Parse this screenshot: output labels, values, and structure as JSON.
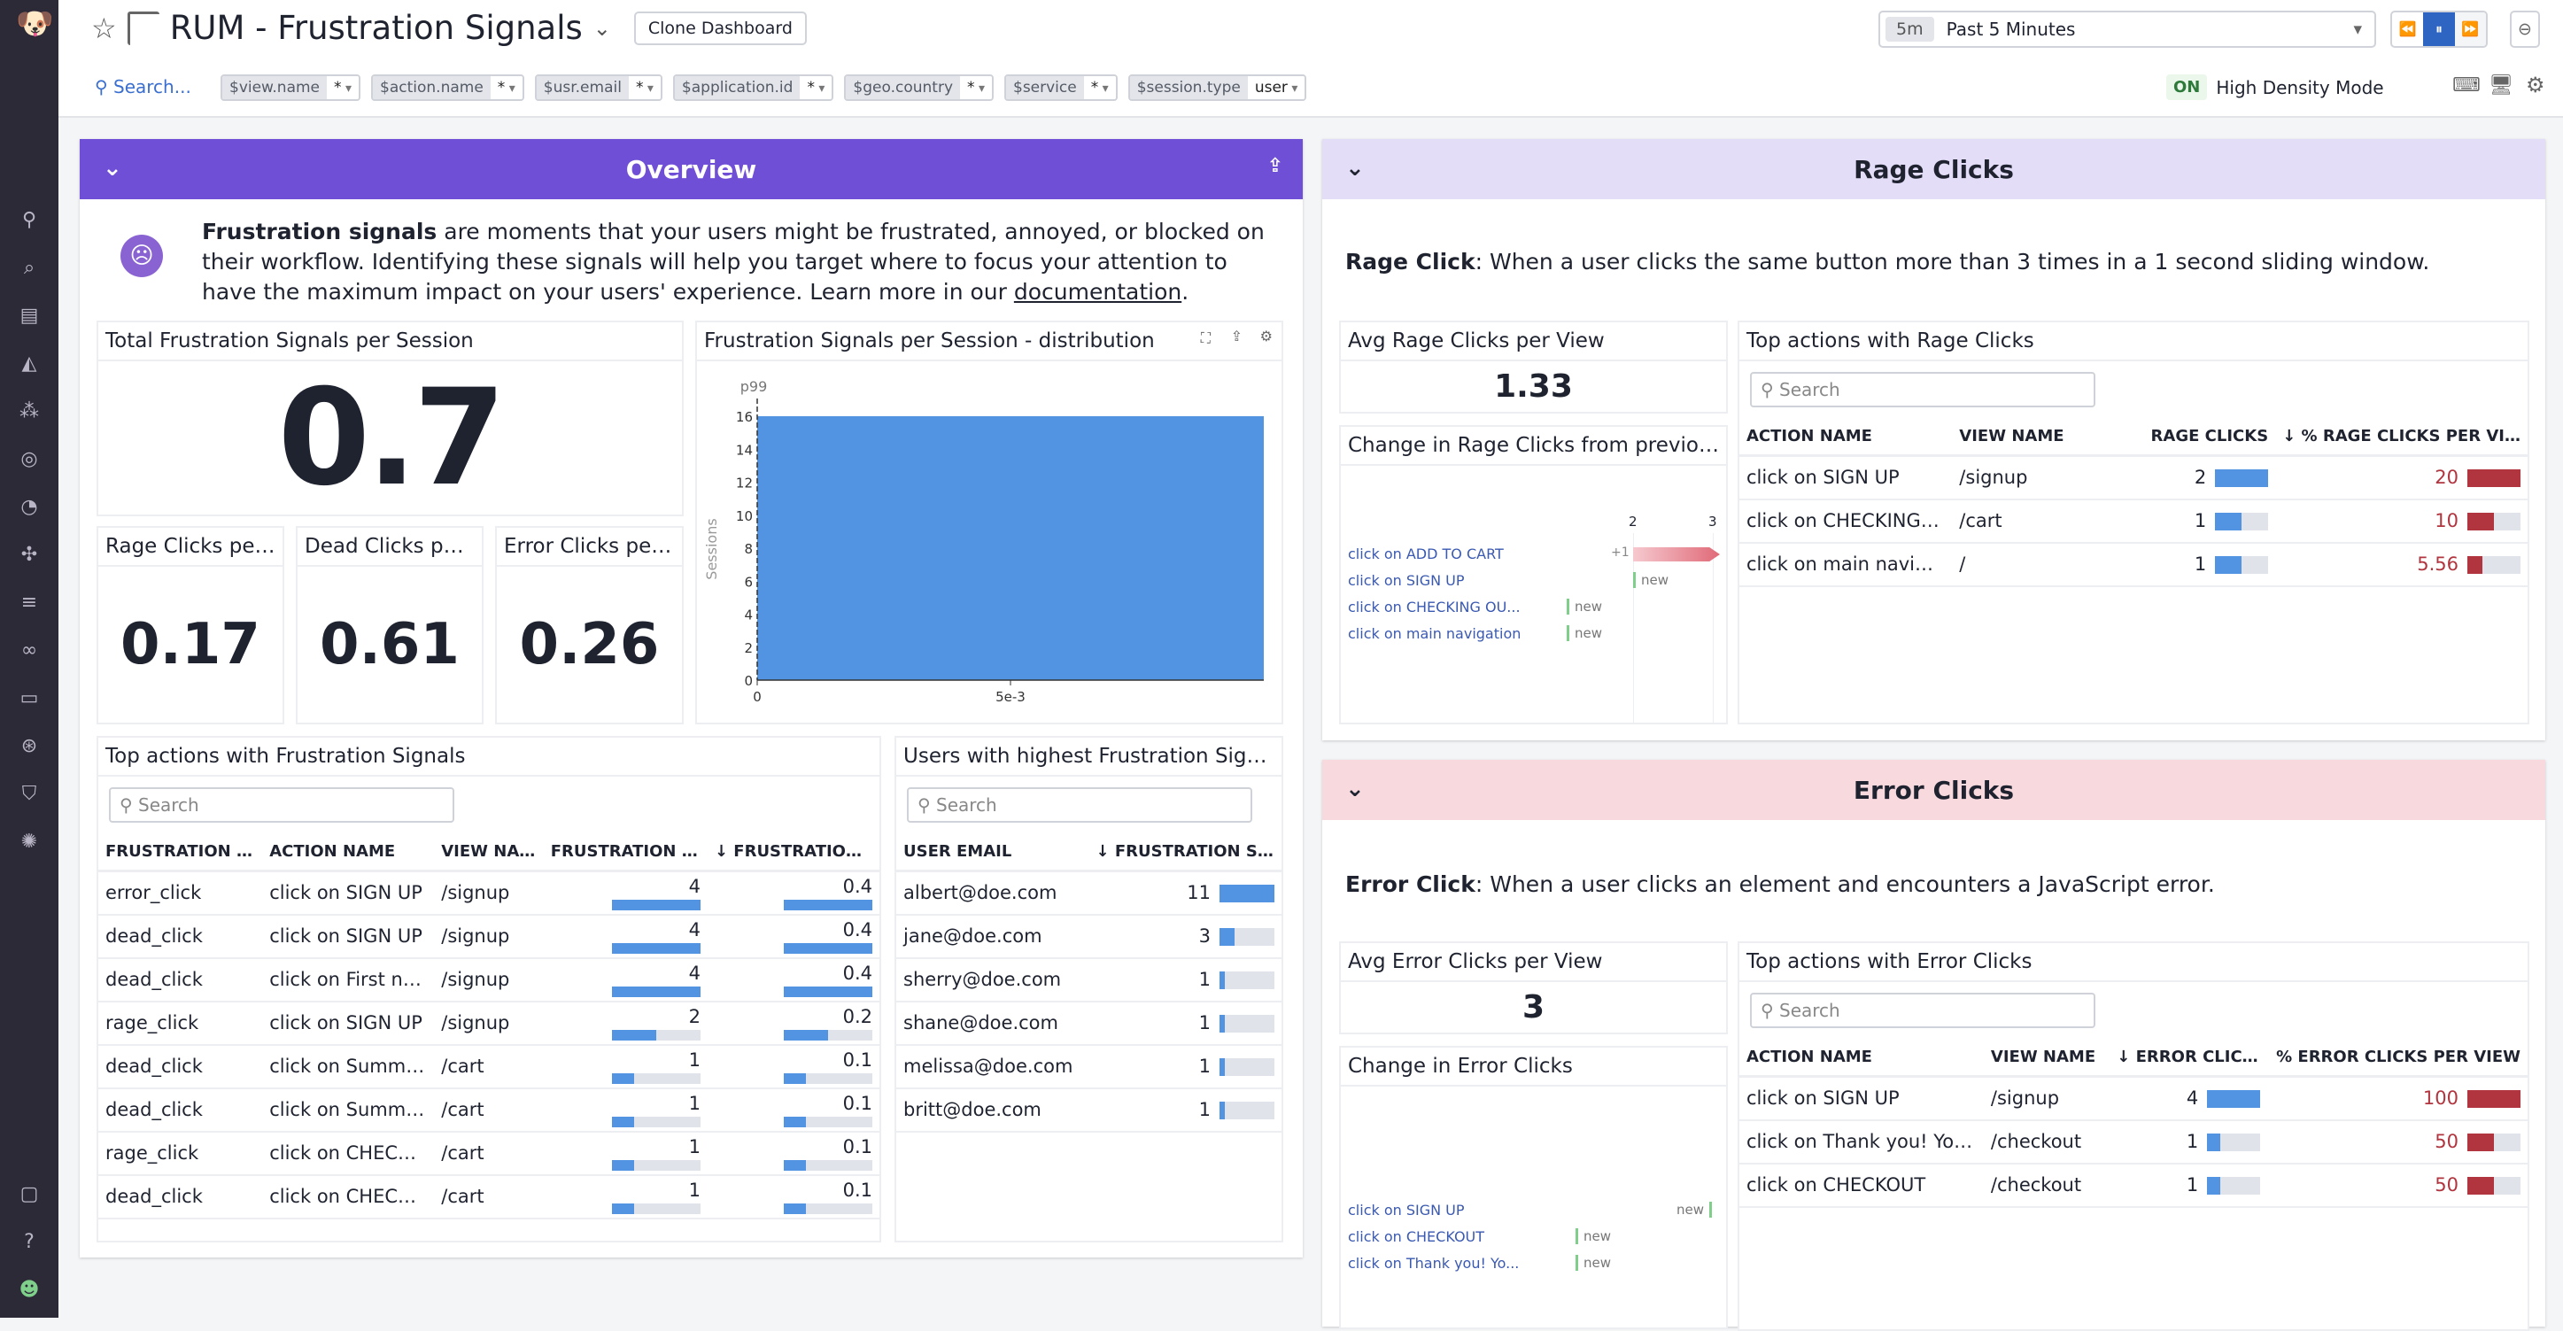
{
  "header": {
    "title": "RUM - Frustration Signals",
    "clone_label": "Clone Dashboard",
    "search_label": "Search...",
    "time": {
      "badge": "5m",
      "label": "Past 5 Minutes"
    },
    "density": {
      "state": "ON",
      "label": "High Density Mode"
    },
    "filters": [
      {
        "key": "$view.name",
        "value": "*"
      },
      {
        "key": "$action.name",
        "value": "*"
      },
      {
        "key": "$usr.email",
        "value": "*"
      },
      {
        "key": "$application.id",
        "value": "*"
      },
      {
        "key": "$geo.country",
        "value": "*"
      },
      {
        "key": "$service",
        "value": "*"
      },
      {
        "key": "$session.type",
        "value": "user"
      }
    ]
  },
  "sidebar": {
    "icons": [
      "search-icon",
      "binoculars-icon",
      "dashboard-icon",
      "chart-icon",
      "network-icon",
      "security-icon",
      "gauge-icon",
      "puzzle-icon",
      "logs-icon",
      "link-icon",
      "notebook-icon",
      "rum-icon",
      "shield-icon",
      "settings-icon"
    ],
    "bottom": [
      "chat-icon",
      "help-icon",
      "user-avatar-icon"
    ]
  },
  "overview": {
    "title": "Overview",
    "intro_bold": "Frustration signals",
    "intro": " are moments that your users might be frustrated, annoyed, or blocked on their workflow. Identifying these signals will help you target where to focus your attention to have the maximum impact on your users' experience. Learn more in our ",
    "intro_link": "documentation",
    "intro_end": ".",
    "total": {
      "title": "Total Frustration Signals per Session",
      "value": "0.7"
    },
    "rage": {
      "title": "Rage Clicks per ...",
      "value": "0.17"
    },
    "dead": {
      "title": "Dead Clicks per ...",
      "value": "0.61"
    },
    "error": {
      "title": "Error Clicks per ...",
      "value": "0.26"
    },
    "top_actions": {
      "title": "Top actions with Frustration Signals",
      "search_placeholder": "Search",
      "columns": [
        "FRUSTRATION TY...",
        "ACTION NAME",
        "VIEW NAME",
        "FRUSTRATION CL...",
        "↓ FRUSTRATION..."
      ],
      "rows": [
        [
          "error_click",
          "click on SIGN UP",
          "/signup",
          4,
          0.4
        ],
        [
          "dead_click",
          "click on SIGN UP",
          "/signup",
          4,
          0.4
        ],
        [
          "dead_click",
          "click on First na...",
          "/signup",
          4,
          0.4
        ],
        [
          "rage_click",
          "click on SIGN UP",
          "/signup",
          2,
          0.2
        ],
        [
          "dead_click",
          "click on Summar...",
          "/cart",
          1,
          0.1
        ],
        [
          "dead_click",
          "click on Summar...",
          "/cart",
          1,
          0.1
        ],
        [
          "rage_click",
          "click on CHECKI...",
          "/cart",
          1,
          0.1
        ],
        [
          "dead_click",
          "click on CHECKI...",
          "/cart",
          1,
          0.1
        ]
      ]
    },
    "users": {
      "title": "Users with highest Frustration Signals",
      "search_placeholder": "Search",
      "columns": [
        "USER EMAIL",
        "↓ FRUSTRATION SIGN..."
      ],
      "rows": [
        [
          "albert@doe.com",
          11
        ],
        [
          "jane@doe.com",
          3
        ],
        [
          "sherry@doe.com",
          1
        ],
        [
          "shane@doe.com",
          1
        ],
        [
          "melissa@doe.com",
          1
        ],
        [
          "britt@doe.com",
          1
        ]
      ]
    }
  },
  "chart_data": {
    "type": "bar",
    "title": "Frustration Signals per Session - distribution",
    "ylabel": "Sessions",
    "xlabel": "",
    "marker_label": "p99",
    "bins": [
      {
        "x0": 0,
        "x1": 0.01,
        "value": 16
      }
    ],
    "xlim": [
      0,
      0.01
    ],
    "xticks": [
      "0",
      "5e-3"
    ],
    "ylim": [
      0,
      16
    ],
    "yticks": [
      0,
      2,
      4,
      6,
      8,
      10,
      12,
      14,
      16
    ],
    "color": "#5294e2"
  },
  "rage": {
    "title": "Rage Clicks",
    "desc_bold": "Rage Click",
    "desc": ": When a user clicks the same button more than 3 times in a 1 second sliding window.",
    "avg": {
      "title": "Avg Rage Clicks per View",
      "value": "1.33"
    },
    "change": {
      "title": "Change in Rage Clicks from previous ...",
      "axis": [
        "2",
        "3"
      ],
      "items": [
        {
          "label": "click on ADD TO CART",
          "delta": "+1"
        },
        {
          "label": "click on SIGN UP",
          "delta": "new"
        },
        {
          "label": "click on CHECKING OU...",
          "delta": "new"
        },
        {
          "label": "click on main navigation",
          "delta": "new"
        }
      ]
    },
    "top": {
      "title": "Top actions with Rage Clicks",
      "search_placeholder": "Search",
      "columns": [
        "ACTION NAME",
        "VIEW NAME",
        "RAGE CLICKS",
        "↓ % RAGE CLICKS PER VIEW"
      ],
      "rows": [
        [
          "click on SIGN UP",
          "/signup",
          2,
          "20"
        ],
        [
          "click on CHECKING OUT...",
          "/cart",
          1,
          "10"
        ],
        [
          "click on main navigation",
          "/",
          1,
          "5.56"
        ]
      ]
    }
  },
  "error": {
    "title": "Error Clicks",
    "desc_bold": "Error Click",
    "desc": ": When a user clicks an element and encounters a JavaScript error.",
    "avg": {
      "title": "Avg Error Clicks per View",
      "value": "3"
    },
    "change": {
      "title": "Change in Error Clicks",
      "items": [
        {
          "label": "click on SIGN UP",
          "delta": "new"
        },
        {
          "label": "click on CHECKOUT",
          "delta": "new"
        },
        {
          "label": "click on Thank you! Yo...",
          "delta": "new"
        }
      ]
    },
    "top": {
      "title": "Top actions with Error Clicks",
      "search_placeholder": "Search",
      "columns": [
        "ACTION NAME",
        "VIEW NAME",
        "↓ ERROR CLICKS",
        "% ERROR CLICKS PER VIEW"
      ],
      "rows": [
        [
          "click on SIGN UP",
          "/signup",
          4,
          "100"
        ],
        [
          "click on Thank you! Your orde...",
          "/checkout",
          1,
          "50"
        ],
        [
          "click on CHECKOUT",
          "/checkout",
          1,
          "50"
        ]
      ]
    }
  },
  "colors": {
    "overview": "#6f4fd6",
    "rage": "#e4ddf8",
    "error": "#f8dade",
    "blue": "#5294e2",
    "red": "#b0353f",
    "track": "#e0e4ea"
  }
}
